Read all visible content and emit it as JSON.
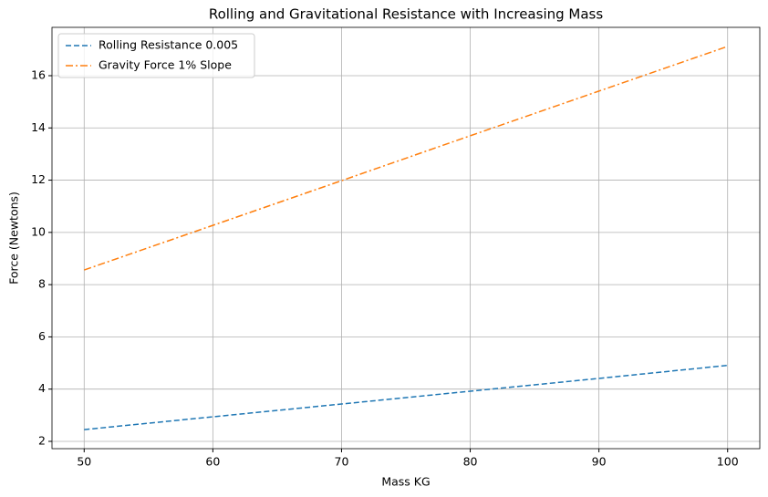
{
  "chart_data": {
    "type": "line",
    "title": "Rolling and Gravitational Resistance with Increasing Mass",
    "x_label": "Mass KG",
    "y_label": "Force (Newtons)",
    "x": [
      50,
      60,
      70,
      80,
      90,
      100
    ],
    "series": [
      {
        "name": "Rolling Resistance 0.005",
        "color": "#1f77b4",
        "dash": "6,3",
        "values": [
          2.45,
          2.94,
          3.43,
          3.92,
          4.41,
          4.91
        ]
      },
      {
        "name": "Gravity Force 1% Slope",
        "color": "#ff7f0e",
        "dash": "8,3,2,3",
        "values": [
          8.56,
          10.27,
          11.98,
          13.7,
          15.41,
          17.12
        ]
      }
    ],
    "xlim": [
      47.5,
      102.5
    ],
    "xticks": [
      50,
      60,
      70,
      80,
      90,
      100
    ],
    "ylim": [
      1.72,
      17.85
    ],
    "yticks": [
      2,
      4,
      6,
      8,
      10,
      12,
      14,
      16
    ],
    "grid": true,
    "legend": "upper-left"
  }
}
